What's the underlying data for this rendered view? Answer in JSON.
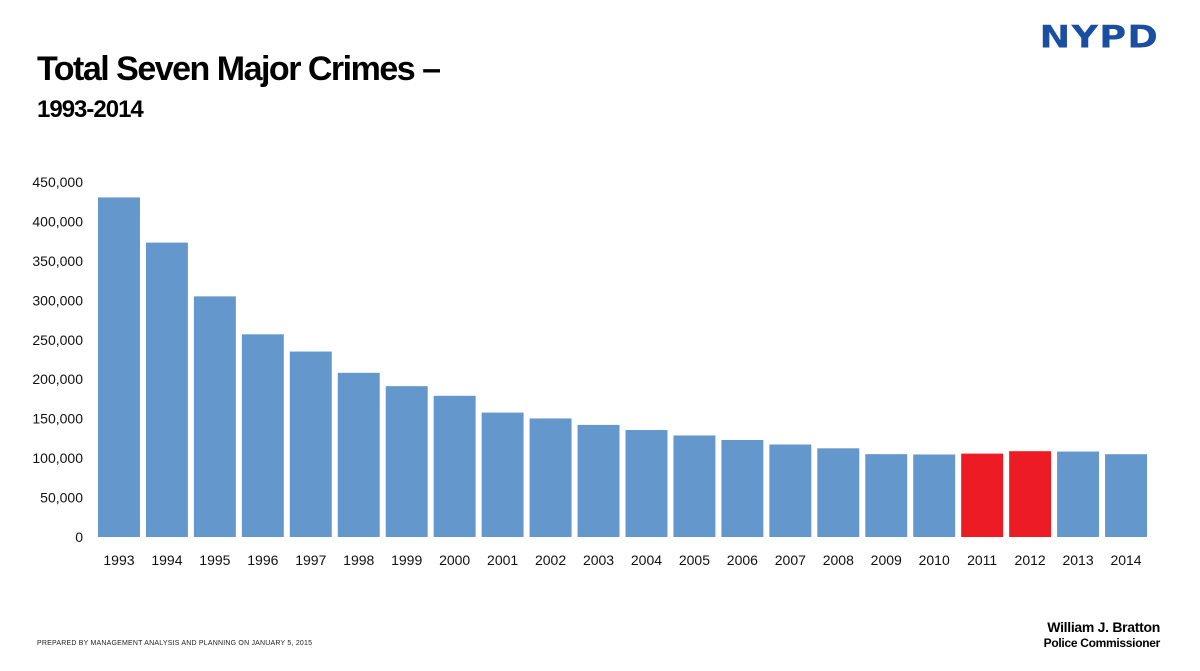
{
  "header": {
    "logo_text": "NYPD",
    "title": "Total Seven Major Crimes –",
    "subtitle": "1993-2014"
  },
  "footer": {
    "note": "PREPARED BY MANAGEMENT ANALYSIS AND PLANNING ON JANUARY 5, 2015",
    "signature_name": "William J. Bratton",
    "signature_role": "Police Commissioner"
  },
  "colors": {
    "bar_default": "#6497cc",
    "bar_highlight": "#ed1c24",
    "logo": "#1a4ea0"
  },
  "chart_data": {
    "type": "bar",
    "title": "Total Seven Major Crimes – 1993-2014",
    "xlabel": "",
    "ylabel": "",
    "ylim": [
      0,
      450000
    ],
    "yticks": [
      0,
      50000,
      100000,
      150000,
      200000,
      250000,
      300000,
      350000,
      400000,
      450000
    ],
    "ytick_labels": [
      "0",
      "50,000",
      "100,000",
      "150,000",
      "200,000",
      "250,000",
      "300,000",
      "350,000",
      "400,000",
      "450,000"
    ],
    "grid": false,
    "legend": "none",
    "categories": [
      "1993",
      "1994",
      "1995",
      "1996",
      "1997",
      "1998",
      "1999",
      "2000",
      "2001",
      "2002",
      "2003",
      "2004",
      "2005",
      "2006",
      "2007",
      "2008",
      "2009",
      "2010",
      "2011",
      "2012",
      "2013",
      "2014"
    ],
    "values": [
      430460,
      373167,
      305009,
      256934,
      235073,
      208131,
      191188,
      178983,
      157709,
      150290,
      142093,
      135623,
      128682,
      122990,
      117259,
      112416,
      104993,
      104596,
      105702,
      108778,
      108311,
      104949
    ],
    "highlighted_categories": [
      "2011",
      "2012"
    ]
  }
}
